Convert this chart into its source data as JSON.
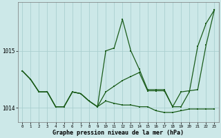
{
  "xlabel": "Graphe pression niveau de la mer (hPa)",
  "background_color": "#cce8e8",
  "grid_color": "#aacfcf",
  "line_color": "#1a5c1a",
  "x_ticks": [
    0,
    1,
    2,
    3,
    4,
    5,
    6,
    7,
    8,
    9,
    10,
    11,
    12,
    13,
    14,
    15,
    16,
    17,
    18,
    19,
    20,
    21,
    22,
    23
  ],
  "ylim": [
    1013.75,
    1015.85
  ],
  "yticks": [
    1014,
    1015
  ],
  "series1": [
    1014.65,
    1014.5,
    1014.28,
    1014.28,
    1014.02,
    1014.02,
    1014.28,
    1014.25,
    1014.12,
    1014.02,
    1014.28,
    1014.38,
    1014.48,
    1014.55,
    1014.62,
    1014.3,
    1014.3,
    1014.3,
    1014.02,
    1014.28,
    1014.3,
    1014.32,
    1015.1,
    1015.72
  ],
  "series2": [
    1014.65,
    1014.5,
    1014.28,
    1014.28,
    1014.02,
    1014.02,
    1014.28,
    1014.25,
    1014.12,
    1014.02,
    1015.0,
    1015.05,
    1015.55,
    1015.0,
    1014.68,
    1014.32,
    1014.32,
    1014.32,
    1014.02,
    1014.02,
    1014.28,
    1015.08,
    1015.48,
    1015.72
  ],
  "series3": [
    1014.65,
    1014.5,
    1014.28,
    1014.28,
    1014.02,
    1014.02,
    1014.28,
    1014.25,
    1014.12,
    1014.02,
    1014.12,
    1014.08,
    1014.05,
    1014.05,
    1014.02,
    1014.02,
    1013.95,
    1013.92,
    1013.92,
    1013.95,
    1013.98,
    1013.98,
    1013.98,
    1013.98
  ]
}
